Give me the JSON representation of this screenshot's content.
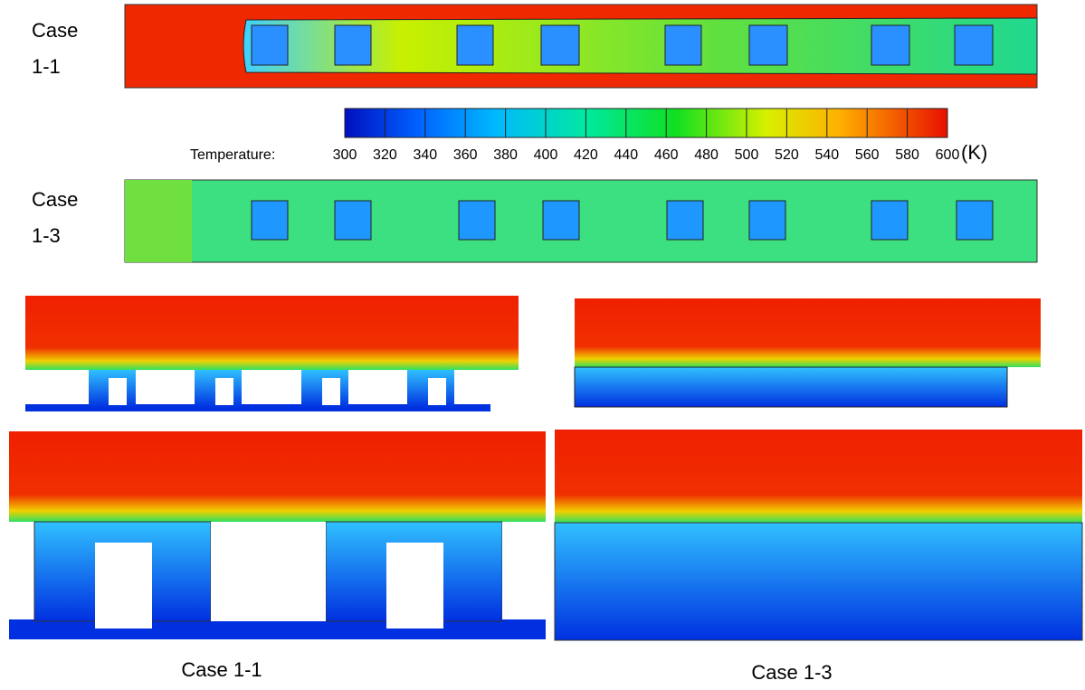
{
  "labels": {
    "case_a_word": "Case",
    "case_a_num": "1-1",
    "case_b_word": "Case",
    "case_b_num": "1-3",
    "caption_left": "Case 1-1",
    "caption_right": "Case 1-3"
  },
  "colorbar": {
    "label": "Temperature:",
    "unit": "(K)",
    "range": [
      300,
      600
    ],
    "ticks": [
      300,
      320,
      340,
      360,
      380,
      400,
      420,
      440,
      460,
      480,
      500,
      520,
      540,
      560,
      580,
      600
    ]
  }
}
